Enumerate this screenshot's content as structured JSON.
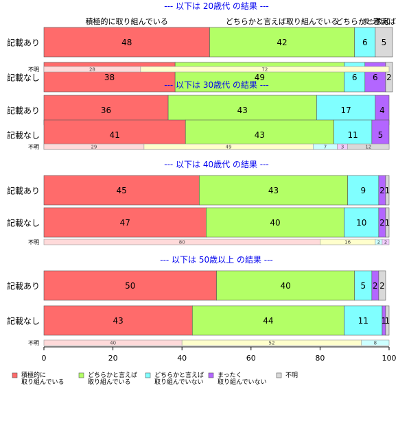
{
  "chart_data": {
    "type": "bar",
    "orientation": "horizontal",
    "stacked": true,
    "xlim": [
      0,
      100
    ],
    "xticks": [
      0,
      20,
      40,
      60,
      80,
      100
    ],
    "categories": [
      "積極的に取り組んでいる",
      "どちらかと言えば取り組んでいる",
      "どちらかと言えば取り組んでいない",
      "まったく取り組んでいない",
      "不明"
    ],
    "colors": {
      "main": [
        "#ff6b6b",
        "#b3ff66",
        "#80ffff",
        "#b366ff",
        "#d9d9d9"
      ],
      "light": [
        "#ffdada",
        "#ffffcc",
        "#ccffff",
        "#f2ccff",
        "#d9d9d9"
      ]
    },
    "header_labels": [
      "積極的に取り組んでいる",
      "どちらかと言えば取り組んでいる",
      "どちらかと言えば",
      "まったく",
      "不明"
    ],
    "legend": [
      {
        "line1": "積極的に",
        "line2": "取り組んでいる"
      },
      {
        "line1": "どちらかと言えば",
        "line2": "取り組んでいる"
      },
      {
        "line1": "どちらかと言えば",
        "line2": "取り組んでいない"
      },
      {
        "line1": "まったく",
        "line2": "取り組んでいない"
      },
      {
        "line1": "不明",
        "line2": ""
      }
    ],
    "groups": [
      {
        "title": "--- 以下は 20歳代 の結果 ---",
        "rows": [
          {
            "label": "記載あり",
            "values": [
              48,
              42,
              6,
              0,
              5
            ]
          },
          {
            "label": "記載なし",
            "values": [
              38,
              49,
              6,
              6,
              2
            ]
          },
          {
            "label": "不明",
            "values": [
              28,
              72,
              0,
              0,
              0
            ]
          }
        ]
      },
      {
        "title": "--- 以下は 30歳代 の結果 ---",
        "rows": [
          {
            "label": "記載あり",
            "values": [
              36,
              43,
              17,
              4,
              0
            ]
          },
          {
            "label": "記載なし",
            "values": [
              41,
              43,
              11,
              5,
              0
            ]
          },
          {
            "label": "不明",
            "values": [
              29,
              49,
              7,
              3,
              12
            ]
          }
        ]
      },
      {
        "title": "--- 以下は 40歳代 の結果 ---",
        "rows": [
          {
            "label": "記載あり",
            "values": [
              45,
              43,
              9,
              2,
              1
            ]
          },
          {
            "label": "記載なし",
            "values": [
              47,
              40,
              10,
              2,
              1
            ]
          },
          {
            "label": "不明",
            "values": [
              80,
              16,
              2,
              2,
              0
            ]
          }
        ]
      },
      {
        "title": "--- 以下は 50歳以上 の結果 ---",
        "rows": [
          {
            "label": "記載あり",
            "values": [
              50,
              40,
              5,
              2,
              2
            ]
          },
          {
            "label": "記載なし",
            "values": [
              43,
              44,
              11,
              1,
              1
            ]
          },
          {
            "label": "不明",
            "values": [
              40,
              52,
              8,
              0,
              0
            ]
          }
        ]
      }
    ]
  }
}
